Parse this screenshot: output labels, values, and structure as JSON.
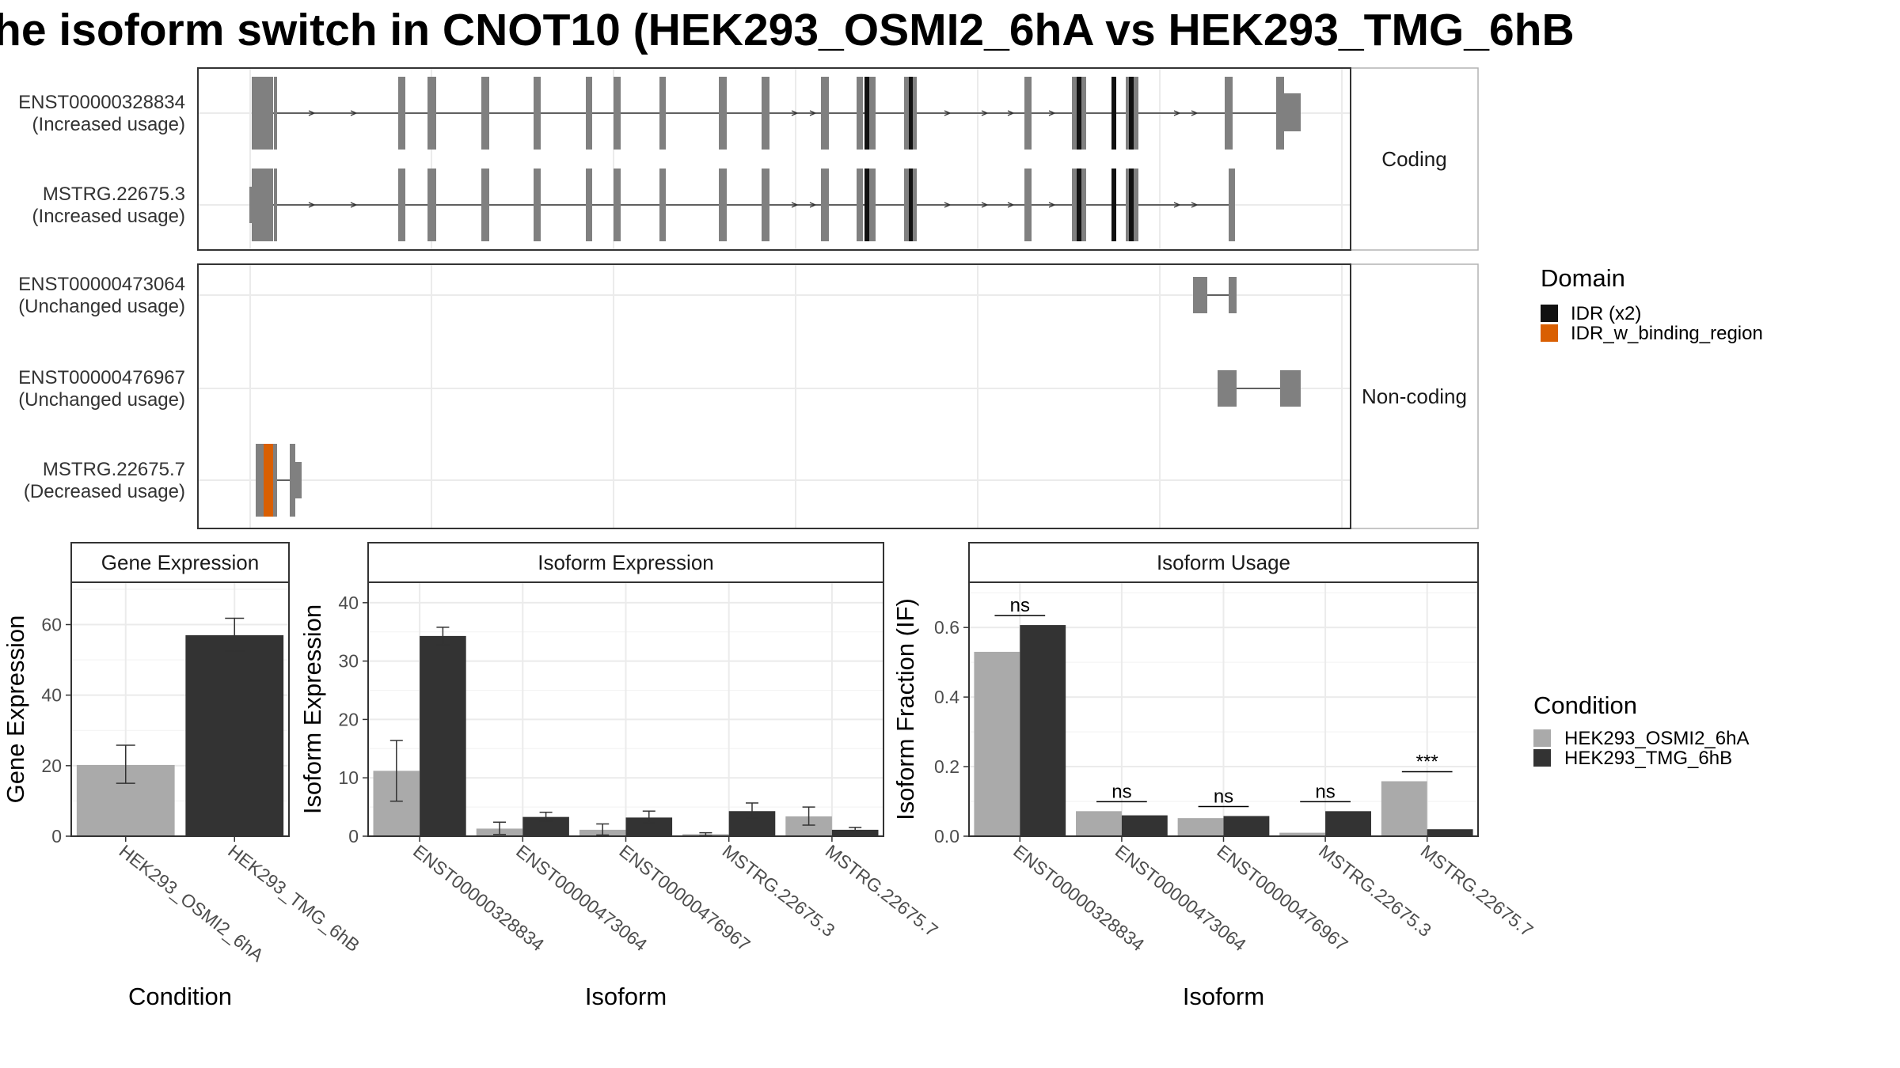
{
  "title": "he isoform switch in CNOT10 (HEK293_OSMI2_6hA vs HEK293_TMG_6hB",
  "colors": {
    "cond_a": "#aaaaaa",
    "cond_b": "#333333",
    "exon": "#808080",
    "idr": "#111111",
    "idr_binding": "#d95f02",
    "panel_border": "#333333",
    "strip_border": "#b3b3b3",
    "grid": "#ebebeb"
  },
  "isoform_structure": {
    "facets": [
      {
        "label": "Coding",
        "rows": [
          {
            "id": "ENST00000328834",
            "usage": "(Increased usage)"
          },
          {
            "id": "MSTRG.22675.3",
            "usage": "(Increased usage)"
          }
        ]
      },
      {
        "label": "Non-coding",
        "rows": [
          {
            "id": "ENST00000473064",
            "usage": "(Unchanged usage)"
          },
          {
            "id": "ENST00000476967",
            "usage": "(Unchanged usage)"
          },
          {
            "id": "MSTRG.22675.7",
            "usage": "(Decreased usage)"
          }
        ]
      }
    ]
  },
  "domain_legend": {
    "title": "Domain",
    "items": [
      {
        "label": "IDR (x2)",
        "color": "#111111"
      },
      {
        "label": "IDR_w_binding_region",
        "color": "#d95f02"
      }
    ]
  },
  "condition_legend": {
    "title": "Condition",
    "items": [
      {
        "label": "HEK293_OSMI2_6hA",
        "color": "#aaaaaa"
      },
      {
        "label": "HEK293_TMG_6hB",
        "color": "#333333"
      }
    ]
  },
  "chart_data": [
    {
      "type": "bar",
      "title": "Gene Expression",
      "xlabel": "Condition",
      "ylabel": "Gene Expression",
      "ylim": [
        0,
        72
      ],
      "yticks": [
        0,
        20,
        40,
        60
      ],
      "categories": [
        "HEK293_OSMI2_6hA",
        "HEK293_TMG_6hB"
      ],
      "values": [
        20.2,
        57
      ],
      "errors": [
        [
          15,
          25.8
        ],
        [
          52.5,
          61.8
        ]
      ]
    },
    {
      "type": "bar",
      "title": "Isoform Expression",
      "xlabel": "Isoform",
      "ylabel": "Isoform Expression",
      "ylim": [
        0,
        43.5
      ],
      "yticks": [
        0,
        10,
        20,
        30,
        40
      ],
      "categories": [
        "ENST00000328834",
        "ENST00000473064",
        "ENST00000476967",
        "MSTRG.22675.3",
        "MSTRG.22675.7"
      ],
      "series": [
        {
          "name": "HEK293_OSMI2_6hA",
          "values": [
            11.2,
            1.3,
            1.1,
            0.35,
            3.4
          ],
          "errors": [
            [
              6,
              16.4
            ],
            [
              0.3,
              2.4
            ],
            [
              0.2,
              2.1
            ],
            [
              0.1,
              0.6
            ],
            [
              1.9,
              5.0
            ]
          ]
        },
        {
          "name": "HEK293_TMG_6hB",
          "values": [
            34.3,
            3.3,
            3.2,
            4.3,
            1.1
          ],
          "errors": [
            [
              32.8,
              35.8
            ],
            [
              2.6,
              4.1
            ],
            [
              2.3,
              4.3
            ],
            [
              3.1,
              5.7
            ],
            [
              0.8,
              1.5
            ]
          ]
        }
      ]
    },
    {
      "type": "bar",
      "title": "Isoform Usage",
      "xlabel": "Isoform",
      "ylabel": "Isoform Fraction (IF)",
      "ylim": [
        0,
        0.73
      ],
      "yticks": [
        0.0,
        0.2,
        0.4,
        0.6
      ],
      "ytick_labels": [
        "0.0",
        "0.2",
        "0.4",
        "0.6"
      ],
      "categories": [
        "ENST00000328834",
        "ENST00000473064",
        "ENST00000476967",
        "MSTRG.22675.3",
        "MSTRG.22675.7"
      ],
      "series": [
        {
          "name": "HEK293_OSMI2_6hA",
          "values": [
            0.53,
            0.072,
            0.052,
            0.01,
            0.158
          ]
        },
        {
          "name": "HEK293_TMG_6hB",
          "values": [
            0.607,
            0.06,
            0.058,
            0.072,
            0.02
          ]
        }
      ],
      "significance": [
        "ns",
        "ns",
        "ns",
        "ns",
        "***"
      ]
    }
  ]
}
